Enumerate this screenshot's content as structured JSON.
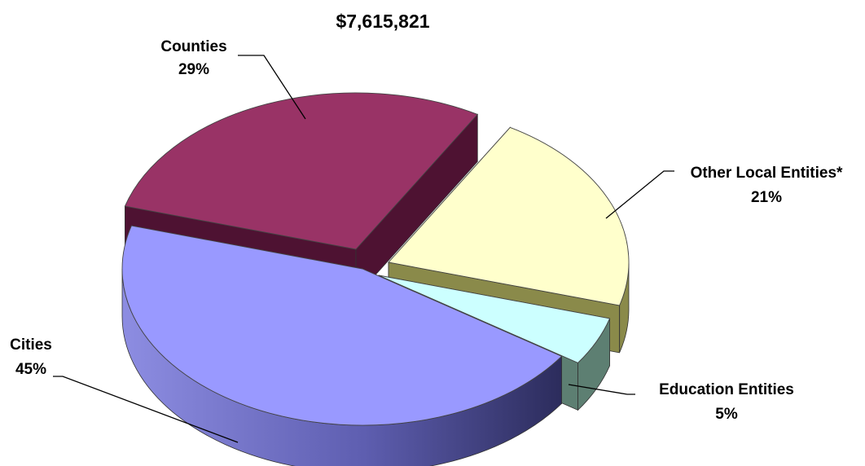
{
  "chart_data": {
    "type": "pie",
    "title": "$7,615,821",
    "slices": [
      {
        "name": "Counties",
        "label": "29%",
        "value": 29,
        "color": "#993366"
      },
      {
        "name": "Other Local Entities*",
        "label": "21%",
        "value": 21,
        "color": "#FFFFCC"
      },
      {
        "name": "Education Entities",
        "label": "5%",
        "value": 5,
        "color": "#CCFFFF"
      },
      {
        "name": "Cities",
        "label": "45%",
        "value": 45,
        "color": "#9999FF"
      }
    ]
  }
}
